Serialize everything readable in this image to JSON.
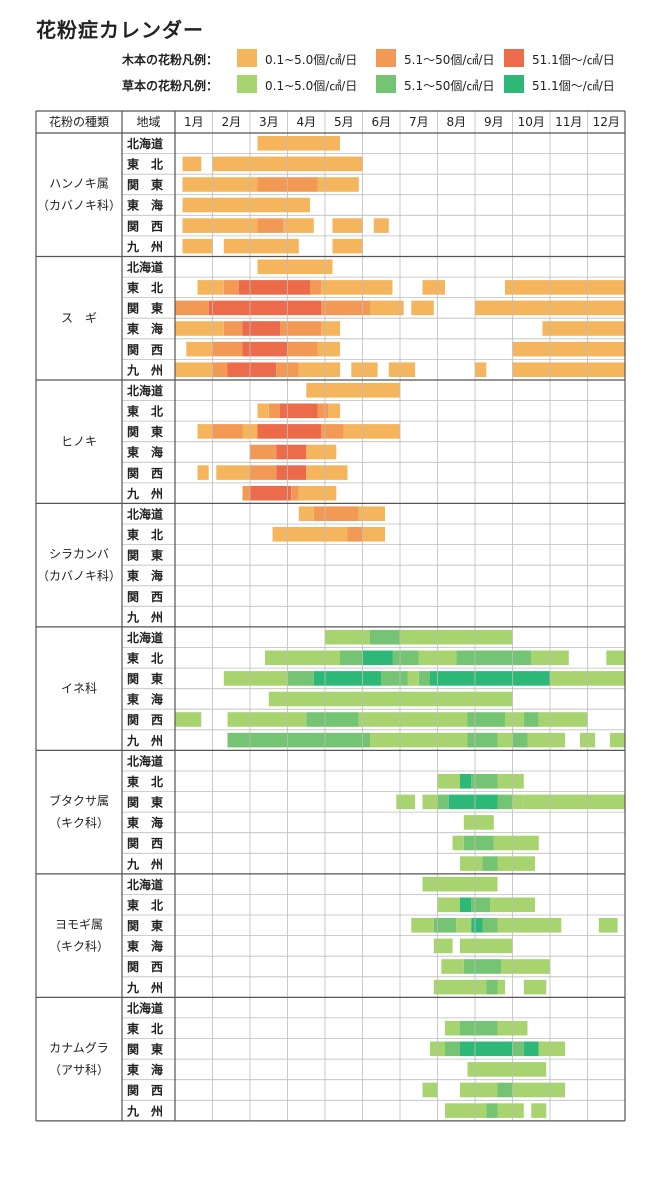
{
  "title": "花粉症カレンダー",
  "legend": {
    "wood": {
      "label": "木本の花粉凡例：",
      "items": [
        {
          "text": "0.1~5.0個/㎠/日",
          "color": "#F5B55C"
        },
        {
          "text": "5.1～50個/㎠/日",
          "color": "#F29A55"
        },
        {
          "text": "51.1個～/㎠/日",
          "color": "#EC6B4A"
        }
      ]
    },
    "herb": {
      "label": "草本の花粉凡例：",
      "items": [
        {
          "text": "0.1~5.0個/㎠/日",
          "color": "#A8D46F"
        },
        {
          "text": "5.1～50個/㎠/日",
          "color": "#74C473"
        },
        {
          "text": "51.1個～/㎠/日",
          "color": "#2DB877"
        }
      ]
    }
  },
  "table_headers": {
    "type": "花粉の種類",
    "region": "地域"
  },
  "chart_data": {
    "type": "table",
    "months": [
      "1月",
      "2月",
      "3月",
      "4月",
      "5月",
      "6月",
      "7月",
      "8月",
      "9月",
      "10月",
      "11月",
      "12月"
    ],
    "regions": [
      "北海道",
      "東　北",
      "関　東",
      "東　海",
      "関　西",
      "九　州"
    ],
    "level_colors": {
      "wood": [
        "#F5B55C",
        "#F29A55",
        "#EC6B4A"
      ],
      "herb": [
        "#A8D46F",
        "#74C473",
        "#2DB877"
      ]
    },
    "unit": "month (1 = start of 1月, 13 = end of 12月)",
    "pollens": [
      {
        "name_lines": [
          "ハンノキ属",
          "（カバノキ科）"
        ],
        "kind": "wood",
        "rows": [
          [
            [
              3.2,
              5.4,
              1
            ]
          ],
          [
            [
              1.2,
              1.7,
              1
            ],
            [
              2.0,
              6.0,
              1
            ]
          ],
          [
            [
              1.2,
              3.2,
              1
            ],
            [
              3.2,
              4.8,
              2
            ],
            [
              4.8,
              5.9,
              1
            ]
          ],
          [
            [
              1.2,
              4.6,
              1
            ]
          ],
          [
            [
              1.2,
              3.2,
              1
            ],
            [
              3.2,
              3.9,
              2
            ],
            [
              3.9,
              4.7,
              1
            ],
            [
              5.2,
              6.0,
              1
            ],
            [
              6.3,
              6.7,
              1
            ]
          ],
          [
            [
              1.2,
              2.0,
              1
            ],
            [
              2.3,
              4.3,
              1
            ],
            [
              5.2,
              6.0,
              1
            ]
          ]
        ]
      },
      {
        "name_lines": [
          "ス　ギ"
        ],
        "kind": "wood",
        "rows": [
          [
            [
              3.2,
              5.2,
              1
            ]
          ],
          [
            [
              1.6,
              2.3,
              1
            ],
            [
              2.3,
              2.7,
              2
            ],
            [
              2.7,
              4.6,
              3
            ],
            [
              4.6,
              4.9,
              2
            ],
            [
              4.9,
              6.8,
              1
            ],
            [
              7.6,
              8.2,
              1
            ],
            [
              9.8,
              13.0,
              1
            ]
          ],
          [
            [
              1.0,
              1.9,
              2
            ],
            [
              1.9,
              4.9,
              3
            ],
            [
              4.9,
              6.2,
              2
            ],
            [
              6.2,
              7.1,
              1
            ],
            [
              7.3,
              7.9,
              1
            ],
            [
              9.0,
              13.0,
              1
            ]
          ],
          [
            [
              1.0,
              2.3,
              1
            ],
            [
              2.3,
              2.8,
              2
            ],
            [
              2.8,
              3.8,
              3
            ],
            [
              3.8,
              4.9,
              2
            ],
            [
              4.9,
              5.4,
              1
            ],
            [
              10.8,
              13.0,
              1
            ]
          ],
          [
            [
              1.3,
              2.0,
              1
            ],
            [
              2.0,
              2.8,
              2
            ],
            [
              2.8,
              4.0,
              3
            ],
            [
              4.0,
              4.8,
              2
            ],
            [
              4.8,
              5.4,
              1
            ],
            [
              10.0,
              13.0,
              1
            ]
          ],
          [
            [
              1.0,
              2.0,
              1
            ],
            [
              2.0,
              2.4,
              2
            ],
            [
              2.4,
              3.7,
              3
            ],
            [
              3.7,
              4.3,
              2
            ],
            [
              4.3,
              5.4,
              1
            ],
            [
              5.7,
              6.4,
              1
            ],
            [
              6.7,
              7.4,
              1
            ],
            [
              9.0,
              9.3,
              1
            ],
            [
              10.0,
              13.0,
              1
            ]
          ]
        ]
      },
      {
        "name_lines": [
          "ヒノキ"
        ],
        "kind": "wood",
        "rows": [
          [
            [
              4.5,
              7.0,
              1
            ]
          ],
          [
            [
              3.2,
              3.5,
              1
            ],
            [
              3.5,
              3.8,
              2
            ],
            [
              3.8,
              4.8,
              3
            ],
            [
              4.8,
              5.1,
              2
            ],
            [
              5.1,
              5.4,
              1
            ]
          ],
          [
            [
              1.6,
              2.0,
              1
            ],
            [
              2.0,
              2.8,
              2
            ],
            [
              2.8,
              3.2,
              1
            ],
            [
              3.2,
              4.9,
              3
            ],
            [
              4.9,
              5.5,
              2
            ],
            [
              5.5,
              7.0,
              1
            ]
          ],
          [
            [
              3.0,
              3.7,
              2
            ],
            [
              3.7,
              4.5,
              3
            ],
            [
              4.5,
              5.3,
              1
            ]
          ],
          [
            [
              1.6,
              1.9,
              1
            ],
            [
              2.1,
              3.0,
              1
            ],
            [
              3.0,
              3.7,
              2
            ],
            [
              3.7,
              4.5,
              3
            ],
            [
              4.5,
              5.6,
              1
            ]
          ],
          [
            [
              2.8,
              3.0,
              2
            ],
            [
              3.0,
              4.1,
              3
            ],
            [
              4.1,
              4.3,
              2
            ],
            [
              4.3,
              5.3,
              1
            ]
          ]
        ]
      },
      {
        "name_lines": [
          "シラカンバ",
          "（カバノキ科）"
        ],
        "kind": "wood",
        "rows": [
          [
            [
              4.3,
              4.7,
              1
            ],
            [
              4.7,
              5.9,
              2
            ],
            [
              5.9,
              6.6,
              1
            ]
          ],
          [
            [
              3.6,
              5.6,
              1
            ],
            [
              5.6,
              6.0,
              2
            ],
            [
              6.0,
              6.6,
              1
            ]
          ],
          [],
          [],
          [],
          []
        ]
      },
      {
        "name_lines": [
          "イネ科"
        ],
        "kind": "herb",
        "rows": [
          [
            [
              5.0,
              6.2,
              1
            ],
            [
              6.2,
              7.0,
              2
            ],
            [
              7.0,
              10.0,
              1
            ]
          ],
          [
            [
              3.4,
              5.4,
              1
            ],
            [
              5.4,
              6.0,
              2
            ],
            [
              6.0,
              6.8,
              3
            ],
            [
              6.8,
              7.5,
              2
            ],
            [
              7.5,
              8.5,
              1
            ],
            [
              8.5,
              10.5,
              2
            ],
            [
              10.5,
              11.5,
              1
            ],
            [
              12.5,
              13.0,
              1
            ]
          ],
          [
            [
              2.3,
              4.0,
              1
            ],
            [
              4.0,
              4.7,
              2
            ],
            [
              4.7,
              6.5,
              3
            ],
            [
              6.5,
              7.2,
              2
            ],
            [
              7.2,
              7.5,
              1
            ],
            [
              7.5,
              7.8,
              2
            ],
            [
              7.8,
              11.0,
              3
            ],
            [
              11.0,
              13.0,
              1
            ]
          ],
          [
            [
              3.5,
              10.0,
              1
            ]
          ],
          [
            [
              1.0,
              1.7,
              1
            ],
            [
              2.4,
              4.5,
              1
            ],
            [
              4.5,
              5.9,
              2
            ],
            [
              5.9,
              8.8,
              1
            ],
            [
              8.8,
              9.8,
              2
            ],
            [
              9.8,
              10.3,
              1
            ],
            [
              10.3,
              10.7,
              2
            ],
            [
              10.7,
              12.0,
              1
            ]
          ],
          [
            [
              2.4,
              4.0,
              2
            ],
            [
              4.0,
              6.2,
              2
            ],
            [
              6.2,
              7.2,
              1
            ],
            [
              7.2,
              8.8,
              1
            ],
            [
              8.8,
              9.6,
              2
            ],
            [
              9.6,
              10.0,
              1
            ],
            [
              10.0,
              10.4,
              2
            ],
            [
              10.4,
              11.4,
              1
            ],
            [
              11.8,
              12.2,
              1
            ],
            [
              12.6,
              13.0,
              1
            ]
          ]
        ]
      },
      {
        "name_lines": [
          "ブタクサ属",
          "（キク科）"
        ],
        "kind": "herb",
        "rows": [
          [],
          [
            [
              8.0,
              8.6,
              1
            ],
            [
              8.6,
              8.9,
              3
            ],
            [
              8.9,
              9.6,
              2
            ],
            [
              9.6,
              10.3,
              1
            ]
          ],
          [
            [
              6.9,
              7.4,
              1
            ],
            [
              7.6,
              8.0,
              1
            ],
            [
              8.0,
              8.3,
              2
            ],
            [
              8.3,
              9.6,
              3
            ],
            [
              9.6,
              10.0,
              2
            ],
            [
              10.0,
              10.3,
              1
            ],
            [
              10.3,
              13.0,
              1
            ]
          ],
          [
            [
              8.7,
              9.5,
              1
            ]
          ],
          [
            [
              8.4,
              8.7,
              1
            ],
            [
              8.7,
              9.5,
              2
            ],
            [
              9.5,
              10.7,
              1
            ]
          ],
          [
            [
              8.6,
              9.2,
              1
            ],
            [
              9.2,
              9.6,
              2
            ],
            [
              9.6,
              10.6,
              1
            ]
          ]
        ]
      },
      {
        "name_lines": [
          "ヨモギ属",
          "（キク科）"
        ],
        "kind": "herb",
        "rows": [
          [
            [
              7.6,
              9.6,
              1
            ]
          ],
          [
            [
              8.0,
              8.6,
              1
            ],
            [
              8.6,
              8.9,
              3
            ],
            [
              8.9,
              9.4,
              2
            ],
            [
              9.4,
              10.6,
              1
            ]
          ],
          [
            [
              7.3,
              7.9,
              1
            ],
            [
              7.9,
              8.5,
              2
            ],
            [
              8.5,
              8.9,
              1
            ],
            [
              8.9,
              9.2,
              3
            ],
            [
              9.2,
              9.6,
              2
            ],
            [
              9.6,
              11.3,
              1
            ],
            [
              12.3,
              12.8,
              1
            ]
          ],
          [
            [
              7.9,
              8.4,
              1
            ],
            [
              8.6,
              10.0,
              1
            ]
          ],
          [
            [
              8.1,
              8.7,
              1
            ],
            [
              8.7,
              9.7,
              2
            ],
            [
              9.7,
              11.0,
              1
            ]
          ],
          [
            [
              7.9,
              9.3,
              1
            ],
            [
              9.3,
              9.6,
              2
            ],
            [
              9.6,
              9.8,
              1
            ],
            [
              10.3,
              10.9,
              1
            ]
          ]
        ]
      },
      {
        "name_lines": [
          "カナムグラ",
          "（アサ科）"
        ],
        "kind": "herb",
        "rows": [
          [],
          [
            [
              8.2,
              8.6,
              1
            ],
            [
              8.6,
              9.6,
              2
            ],
            [
              9.6,
              10.4,
              1
            ]
          ],
          [
            [
              7.8,
              8.2,
              1
            ],
            [
              8.2,
              8.6,
              2
            ],
            [
              8.6,
              10.0,
              3
            ],
            [
              10.0,
              10.3,
              2
            ],
            [
              10.3,
              10.7,
              3
            ],
            [
              10.7,
              11.4,
              1
            ]
          ],
          [
            [
              8.8,
              10.9,
              1
            ]
          ],
          [
            [
              7.6,
              8.0,
              1
            ],
            [
              8.6,
              9.6,
              1
            ],
            [
              9.6,
              10.0,
              2
            ],
            [
              10.0,
              11.4,
              1
            ]
          ],
          [
            [
              8.2,
              9.3,
              1
            ],
            [
              9.3,
              9.6,
              2
            ],
            [
              9.6,
              10.3,
              1
            ],
            [
              10.5,
              10.9,
              1
            ]
          ]
        ]
      }
    ]
  }
}
